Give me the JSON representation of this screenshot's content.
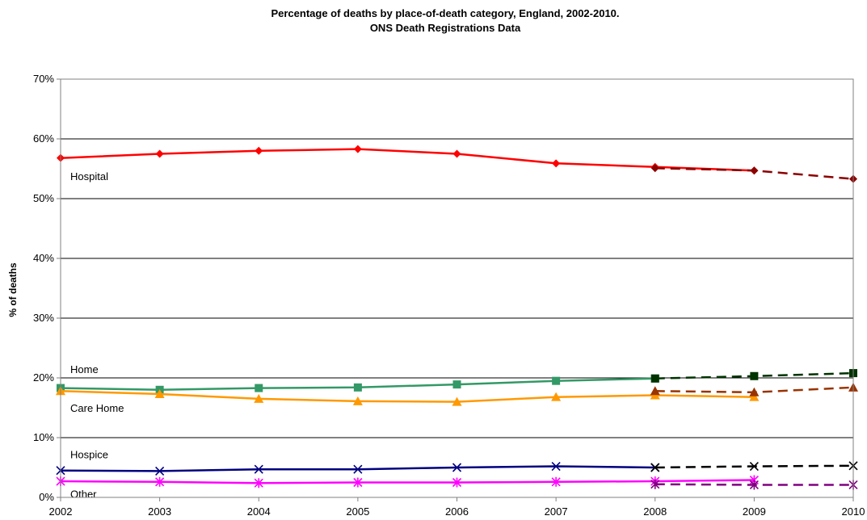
{
  "chart_data": {
    "type": "line",
    "title_line1": "Percentage of deaths by place-of-death category, England, 2002-2010.",
    "title_line2": "ONS Death Registrations Data",
    "ylabel": "% of deaths",
    "xlabel": "",
    "x": [
      2002,
      2003,
      2004,
      2005,
      2006,
      2007,
      2008,
      2009,
      2010
    ],
    "x_tick_labels": [
      "2002",
      "2003",
      "2004",
      "2005",
      "2006",
      "2007",
      "2008",
      "2009",
      "2010"
    ],
    "ylim": [
      0,
      70
    ],
    "y_ticks": [
      0,
      10,
      20,
      30,
      40,
      50,
      60,
      70
    ],
    "y_tick_labels": [
      "0%",
      "10%",
      "20%",
      "30%",
      "40%",
      "50%",
      "60%",
      "70%"
    ],
    "grid": "horizontal",
    "series": [
      {
        "name": "Hospital",
        "color": "#ff0000",
        "marker": "diamond",
        "style": "solid",
        "points": [
          [
            2002,
            56.8
          ],
          [
            2003,
            57.5
          ],
          [
            2004,
            58.0
          ],
          [
            2005,
            58.3
          ],
          [
            2006,
            57.5
          ],
          [
            2007,
            55.9
          ],
          [
            2008,
            55.3
          ],
          [
            2009,
            54.7
          ]
        ]
      },
      {
        "name": "Hospital",
        "color": "#8b0000",
        "marker": "diamond",
        "style": "dashed",
        "points": [
          [
            2008,
            55.1
          ],
          [
            2009,
            54.7
          ],
          [
            2010,
            53.3
          ]
        ]
      },
      {
        "name": "Home",
        "color": "#339966",
        "marker": "square",
        "style": "solid",
        "points": [
          [
            2002,
            18.3
          ],
          [
            2003,
            18.0
          ],
          [
            2004,
            18.3
          ],
          [
            2005,
            18.4
          ],
          [
            2006,
            18.9
          ],
          [
            2007,
            19.5
          ],
          [
            2008,
            19.9
          ]
        ]
      },
      {
        "name": "Home",
        "color": "#003300",
        "marker": "square",
        "style": "dashed",
        "points": [
          [
            2008,
            19.9
          ],
          [
            2009,
            20.3
          ],
          [
            2010,
            20.8
          ]
        ]
      },
      {
        "name": "Care Home",
        "color": "#ff9900",
        "marker": "triangle",
        "style": "solid",
        "points": [
          [
            2002,
            17.8
          ],
          [
            2003,
            17.3
          ],
          [
            2004,
            16.5
          ],
          [
            2005,
            16.1
          ],
          [
            2006,
            16.0
          ],
          [
            2007,
            16.8
          ],
          [
            2008,
            17.1
          ],
          [
            2009,
            16.8
          ]
        ]
      },
      {
        "name": "Care Home",
        "color": "#993300",
        "marker": "triangle",
        "style": "dashed",
        "points": [
          [
            2008,
            17.8
          ],
          [
            2009,
            17.6
          ],
          [
            2010,
            18.4
          ]
        ]
      },
      {
        "name": "Hospice",
        "color": "#000080",
        "marker": "x",
        "style": "solid",
        "points": [
          [
            2002,
            4.5
          ],
          [
            2003,
            4.4
          ],
          [
            2004,
            4.7
          ],
          [
            2005,
            4.7
          ],
          [
            2006,
            5.0
          ],
          [
            2007,
            5.2
          ],
          [
            2008,
            5.0
          ]
        ]
      },
      {
        "name": "Hospice",
        "color": "#000000",
        "marker": "x",
        "style": "dashed",
        "points": [
          [
            2008,
            5.0
          ],
          [
            2009,
            5.2
          ],
          [
            2010,
            5.3
          ]
        ]
      },
      {
        "name": "Other",
        "color": "#ff00ff",
        "marker": "asterisk",
        "style": "solid",
        "points": [
          [
            2002,
            2.7
          ],
          [
            2003,
            2.6
          ],
          [
            2004,
            2.4
          ],
          [
            2005,
            2.5
          ],
          [
            2006,
            2.5
          ],
          [
            2007,
            2.6
          ],
          [
            2008,
            2.7
          ],
          [
            2009,
            2.9
          ]
        ]
      },
      {
        "name": "Other",
        "color": "#800080",
        "marker": "asterisk",
        "style": "dashed",
        "points": [
          [
            2008,
            2.2
          ],
          [
            2009,
            2.1
          ],
          [
            2010,
            2.1
          ]
        ]
      }
    ],
    "series_labels": [
      {
        "text": "Hospital",
        "x": 2002,
        "y": 53.8
      },
      {
        "text": "Home",
        "x": 2002,
        "y": 21.5
      },
      {
        "text": "Care Home",
        "x": 2002,
        "y": 15.0
      },
      {
        "text": "Hospice",
        "x": 2002,
        "y": 7.2
      },
      {
        "text": "Other",
        "x": 2002,
        "y": 0.6
      }
    ]
  }
}
